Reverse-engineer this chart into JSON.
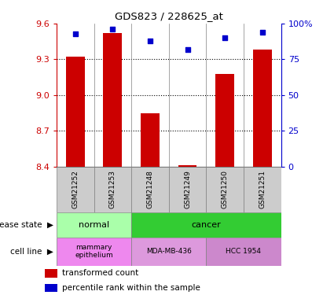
{
  "title": "GDS823 / 228625_at",
  "samples": [
    "GSM21252",
    "GSM21253",
    "GSM21248",
    "GSM21249",
    "GSM21250",
    "GSM21251"
  ],
  "transformed_counts": [
    9.32,
    9.52,
    8.85,
    8.41,
    9.18,
    9.38
  ],
  "percentile_ranks": [
    93,
    96,
    88,
    82,
    90,
    94
  ],
  "ylim_left": [
    8.4,
    9.6
  ],
  "ylim_right": [
    0,
    100
  ],
  "yticks_left": [
    8.4,
    8.7,
    9.0,
    9.3,
    9.6
  ],
  "yticks_right": [
    0,
    25,
    50,
    75,
    100
  ],
  "bar_color": "#cc0000",
  "dot_color": "#0000cc",
  "bar_width": 0.5,
  "normal_color": "#aaffaa",
  "cancer_color": "#33cc33",
  "mammary_color": "#ee88ee",
  "mdamb_color": "#dd99dd",
  "hcc_color": "#cc88cc",
  "sample_box_color": "#cccccc",
  "row_label_disease": "disease state",
  "row_label_cell": "cell line",
  "legend_red": "transformed count",
  "legend_blue": "percentile rank within the sample"
}
